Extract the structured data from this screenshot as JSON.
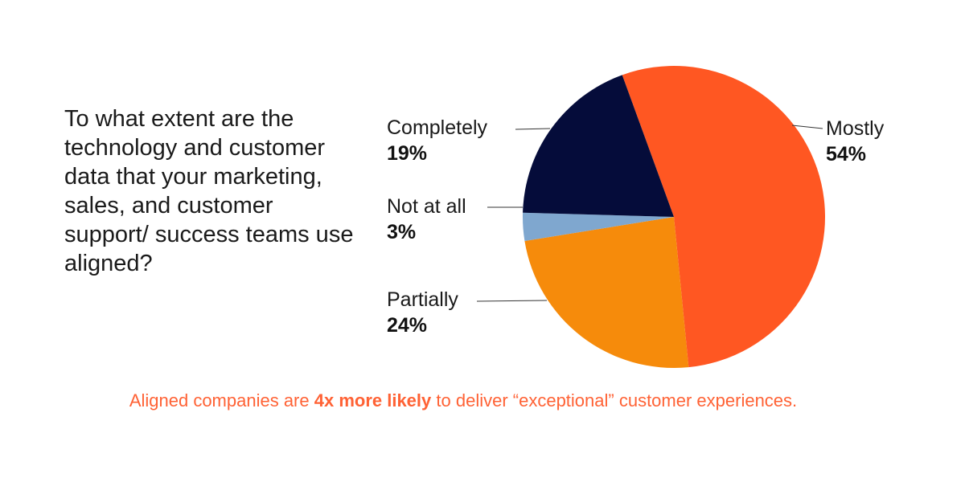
{
  "question": "To what extent are the technology and customer data that your marketing, sales, and customer support/ success teams use aligned?",
  "chart_data": {
    "type": "pie",
    "title": "",
    "slices": [
      {
        "label": "Mostly",
        "value": 54,
        "pct": "54%",
        "color": "#ff5722"
      },
      {
        "label": "Partially",
        "value": 24,
        "pct": "24%",
        "color": "#f68b0b"
      },
      {
        "label": "Not at all",
        "value": 3,
        "pct": "3%",
        "color": "#7fa7cf"
      },
      {
        "label": "Completely",
        "value": 19,
        "pct": "19%",
        "color": "#050c3a"
      }
    ]
  },
  "footnote": {
    "prefix": "Aligned companies are ",
    "highlight": "4x more likely",
    "suffix": " to deliver “exceptional” customer experiences.",
    "color": "#ff6235"
  }
}
